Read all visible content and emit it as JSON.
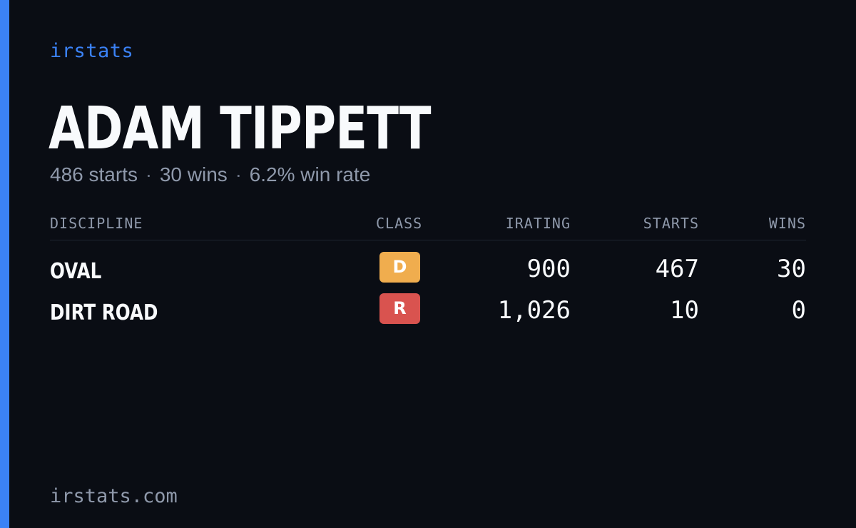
{
  "brand": "irstats",
  "player": {
    "name": "ADAM TIPPETT",
    "starts_text": "486 starts",
    "wins_text": "30 wins",
    "win_rate_text": "6.2% win rate",
    "separator": "·"
  },
  "table": {
    "headers": {
      "discipline": "DISCIPLINE",
      "class": "CLASS",
      "irating": "IRATING",
      "starts": "STARTS",
      "wins": "WINS"
    },
    "rows": [
      {
        "discipline": "OVAL",
        "class": "D",
        "class_color": "#f0ad4e",
        "irating": "900",
        "starts": "467",
        "wins": "30"
      },
      {
        "discipline": "DIRT ROAD",
        "class": "R",
        "class_color": "#d9534f",
        "irating": "1,026",
        "starts": "10",
        "wins": "0"
      }
    ]
  },
  "footer": "irstats.com",
  "colors": {
    "background": "#0a0d14",
    "accent": "#3b82f6"
  }
}
